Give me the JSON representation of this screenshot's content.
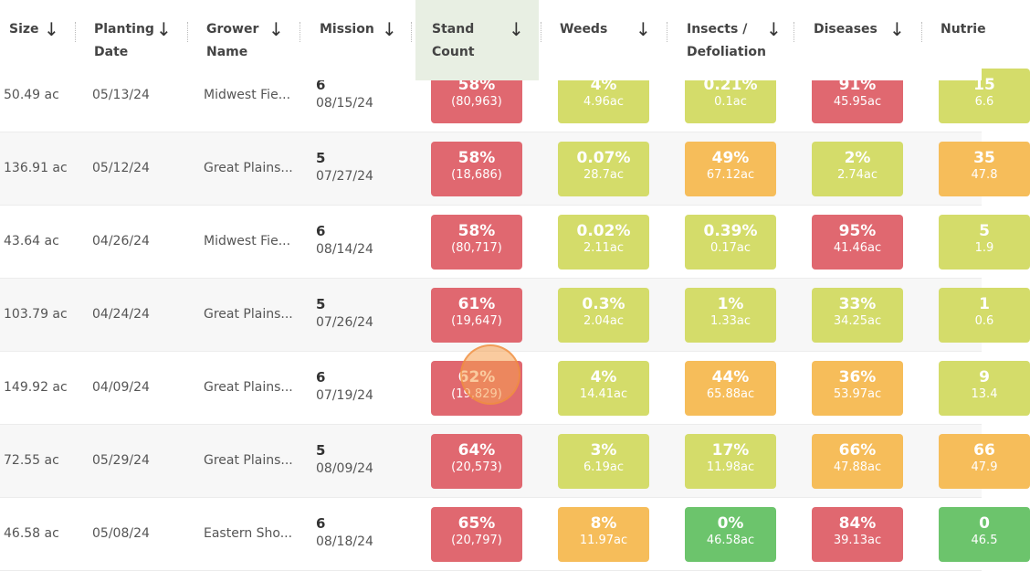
{
  "colors": {
    "red": "#e06870",
    "lime": "#d4dc6a",
    "orange": "#f6bd5a",
    "green": "#6cc46c"
  },
  "headers": [
    {
      "label": "Size",
      "second": ""
    },
    {
      "label": "Planting",
      "second": "Date"
    },
    {
      "label": "Grower",
      "second": "Name"
    },
    {
      "label": "Mission",
      "second": ""
    },
    {
      "label": "Stand",
      "second": "Count"
    },
    {
      "label": "Weeds",
      "second": ""
    },
    {
      "label": "Insects /",
      "second": "Defoliation"
    },
    {
      "label": "Diseases",
      "second": ""
    },
    {
      "label": "Nutrie",
      "second": ""
    }
  ],
  "rows": [
    {
      "size": "50.49 ac",
      "planting": "05/13/24",
      "grower": "Midwest Fie...",
      "mission": "6",
      "mission_date": "08/15/24",
      "metrics": [
        {
          "p": "58%",
          "s": "(80,963)",
          "c": "red"
        },
        {
          "p": "4%",
          "s": "4.96ac",
          "c": "lime"
        },
        {
          "p": "0.21%",
          "s": "0.1ac",
          "c": "lime"
        },
        {
          "p": "91%",
          "s": "45.95ac",
          "c": "red"
        },
        {
          "p": "15",
          "s": "6.6",
          "c": "lime"
        }
      ]
    },
    {
      "size": "136.91 ac",
      "planting": "05/12/24",
      "grower": "Great Plains...",
      "mission": "5",
      "mission_date": "07/27/24",
      "metrics": [
        {
          "p": "58%",
          "s": "(18,686)",
          "c": "red"
        },
        {
          "p": "0.07%",
          "s": "28.7ac",
          "c": "lime"
        },
        {
          "p": "49%",
          "s": "67.12ac",
          "c": "orange"
        },
        {
          "p": "2%",
          "s": "2.74ac",
          "c": "lime"
        },
        {
          "p": "35",
          "s": "47.8",
          "c": "orange"
        }
      ]
    },
    {
      "size": "43.64 ac",
      "planting": "04/26/24",
      "grower": "Midwest Fie...",
      "mission": "6",
      "mission_date": "08/14/24",
      "metrics": [
        {
          "p": "58%",
          "s": "(80,717)",
          "c": "red"
        },
        {
          "p": "0.02%",
          "s": "2.11ac",
          "c": "lime"
        },
        {
          "p": "0.39%",
          "s": "0.17ac",
          "c": "lime"
        },
        {
          "p": "95%",
          "s": "41.46ac",
          "c": "red"
        },
        {
          "p": "5",
          "s": "1.9",
          "c": "lime"
        }
      ]
    },
    {
      "size": "103.79 ac",
      "planting": "04/24/24",
      "grower": "Great Plains...",
      "mission": "5",
      "mission_date": "07/26/24",
      "metrics": [
        {
          "p": "61%",
          "s": "(19,647)",
          "c": "red"
        },
        {
          "p": "0.3%",
          "s": "2.04ac",
          "c": "lime"
        },
        {
          "p": "1%",
          "s": "1.33ac",
          "c": "lime"
        },
        {
          "p": "33%",
          "s": "34.25ac",
          "c": "lime"
        },
        {
          "p": "1",
          "s": "0.6",
          "c": "lime"
        }
      ]
    },
    {
      "size": "149.92 ac",
      "planting": "04/09/24",
      "grower": "Great Plains...",
      "mission": "6",
      "mission_date": "07/19/24",
      "metrics": [
        {
          "p": "62%",
          "s": "(19,829)",
          "c": "red"
        },
        {
          "p": "4%",
          "s": "14.41ac",
          "c": "lime"
        },
        {
          "p": "44%",
          "s": "65.88ac",
          "c": "orange"
        },
        {
          "p": "36%",
          "s": "53.97ac",
          "c": "orange"
        },
        {
          "p": "9",
          "s": "13.4",
          "c": "lime"
        }
      ]
    },
    {
      "size": "72.55 ac",
      "planting": "05/29/24",
      "grower": "Great Plains...",
      "mission": "5",
      "mission_date": "08/09/24",
      "metrics": [
        {
          "p": "64%",
          "s": "(20,573)",
          "c": "red"
        },
        {
          "p": "3%",
          "s": "6.19ac",
          "c": "lime"
        },
        {
          "p": "17%",
          "s": "11.98ac",
          "c": "lime"
        },
        {
          "p": "66%",
          "s": "47.88ac",
          "c": "orange"
        },
        {
          "p": "66",
          "s": "47.9",
          "c": "orange"
        }
      ]
    },
    {
      "size": "46.58 ac",
      "planting": "05/08/24",
      "grower": "Eastern Sho...",
      "mission": "6",
      "mission_date": "08/18/24",
      "metrics": [
        {
          "p": "65%",
          "s": "(20,797)",
          "c": "red"
        },
        {
          "p": "8%",
          "s": "11.97ac",
          "c": "orange"
        },
        {
          "p": "0%",
          "s": "46.58ac",
          "c": "green"
        },
        {
          "p": "84%",
          "s": "39.13ac",
          "c": "red"
        },
        {
          "p": "0",
          "s": "46.5",
          "c": "green"
        }
      ]
    }
  ]
}
